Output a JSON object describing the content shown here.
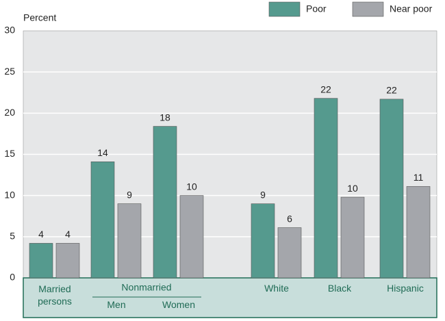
{
  "chart_data": {
    "type": "bar",
    "y_label": "Percent",
    "categories": [
      "Married persons",
      "Men",
      "Women",
      "White",
      "Black",
      "Hispanic"
    ],
    "group_label": "Nonmarried",
    "series": [
      {
        "name": "Poor",
        "color": "#559a8e",
        "values": [
          4.2,
          14.1,
          18.4,
          9,
          21.8,
          21.7
        ],
        "value_labels": [
          "4",
          "14",
          "18",
          "9",
          "22",
          "22"
        ]
      },
      {
        "name": "Near poor",
        "color": "#a4a6ab",
        "values": [
          4.2,
          9,
          10,
          6.1,
          9.8,
          11.1
        ],
        "value_labels": [
          "4",
          "9",
          "10",
          "6",
          "10",
          "11"
        ]
      }
    ],
    "ylim": [
      0,
      30
    ],
    "yticks": [
      0,
      5,
      10,
      15,
      20,
      25,
      30
    ],
    "grid": true,
    "legend": "top-right"
  }
}
